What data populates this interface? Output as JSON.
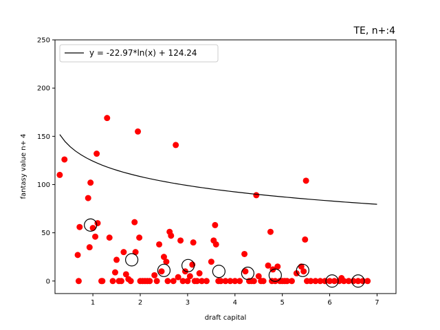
{
  "chart_data": {
    "type": "scatter",
    "title": "TE, n+:4",
    "xlabel": "draft capital",
    "ylabel": "fantasy value n+ 4",
    "xlim": [
      0.2,
      7.4
    ],
    "ylim": [
      -13,
      250
    ],
    "x_ticks": [
      1,
      2,
      3,
      4,
      5,
      6,
      7
    ],
    "y_ticks": [
      0,
      50,
      100,
      150,
      200,
      250
    ],
    "grid": false,
    "legend": {
      "placement": "top-left",
      "entries": [
        "y = -22.97*ln(x) + 124.24"
      ]
    },
    "colors": {
      "points": "#ff0000",
      "fit_line": "#000000",
      "bin_markers": "#000000"
    },
    "series": [
      {
        "kind": "points",
        "x": [
          0.3,
          0.4,
          0.68,
          0.72,
          0.7,
          0.9,
          0.93,
          0.95,
          1.0,
          1.05,
          1.08,
          1.1,
          1.18,
          1.2,
          1.3,
          1.35,
          1.42,
          1.47,
          1.5,
          1.55,
          1.6,
          1.65,
          1.7,
          1.75,
          1.8,
          1.88,
          1.9,
          1.95,
          1.98,
          2.0,
          2.05,
          2.1,
          2.15,
          2.2,
          2.3,
          2.35,
          2.4,
          2.45,
          2.5,
          2.55,
          2.58,
          2.62,
          2.65,
          2.7,
          2.75,
          2.8,
          2.85,
          2.9,
          2.95,
          3.0,
          3.05,
          3.1,
          3.12,
          3.15,
          3.2,
          3.25,
          3.3,
          3.4,
          3.5,
          3.55,
          3.58,
          3.6,
          3.65,
          3.7,
          3.8,
          3.9,
          4.0,
          4.1,
          4.2,
          4.22,
          4.3,
          4.35,
          4.4,
          4.45,
          4.5,
          4.55,
          4.6,
          4.7,
          4.75,
          4.78,
          4.8,
          4.85,
          4.9,
          4.95,
          5.0,
          5.05,
          5.1,
          5.2,
          5.3,
          5.4,
          5.45,
          5.48,
          5.5,
          5.52,
          5.6,
          5.7,
          5.8,
          5.9,
          6.0,
          6.1,
          6.2,
          6.25,
          6.3,
          6.4,
          6.5,
          6.6,
          6.7,
          6.8
        ],
        "y": [
          110,
          126,
          27,
          56,
          0,
          86,
          35,
          102,
          55,
          46,
          132,
          60,
          0,
          0,
          169,
          45,
          0,
          9,
          22,
          0,
          0,
          30,
          7,
          2,
          0,
          61,
          30,
          155,
          45,
          0,
          0,
          0,
          0,
          0,
          6,
          0,
          38,
          10,
          25,
          20,
          0,
          51,
          47,
          0,
          141,
          4,
          42,
          0,
          10,
          0,
          5,
          17,
          40,
          0,
          0,
          8,
          0,
          0,
          20,
          42,
          58,
          38,
          0,
          0,
          0,
          0,
          0,
          0,
          28,
          10,
          0,
          0,
          0,
          89,
          5,
          0,
          0,
          16,
          51,
          0,
          12,
          0,
          15,
          0,
          0,
          0,
          0,
          0,
          8,
          15,
          10,
          43,
          104,
          0,
          0,
          0,
          0,
          0,
          0,
          0,
          0,
          3,
          0,
          0,
          0,
          0,
          0,
          0
        ]
      },
      {
        "kind": "bin_means",
        "x": [
          0.95,
          1.82,
          2.5,
          3.01,
          3.66,
          4.27,
          4.85,
          5.43,
          6.05,
          6.6
        ],
        "y": [
          58,
          22,
          11,
          16,
          10,
          8,
          6,
          11,
          0,
          0
        ]
      }
    ],
    "fit": {
      "a": -22.97,
      "b": 124.24,
      "x_range": [
        0.3,
        7.0
      ]
    }
  }
}
